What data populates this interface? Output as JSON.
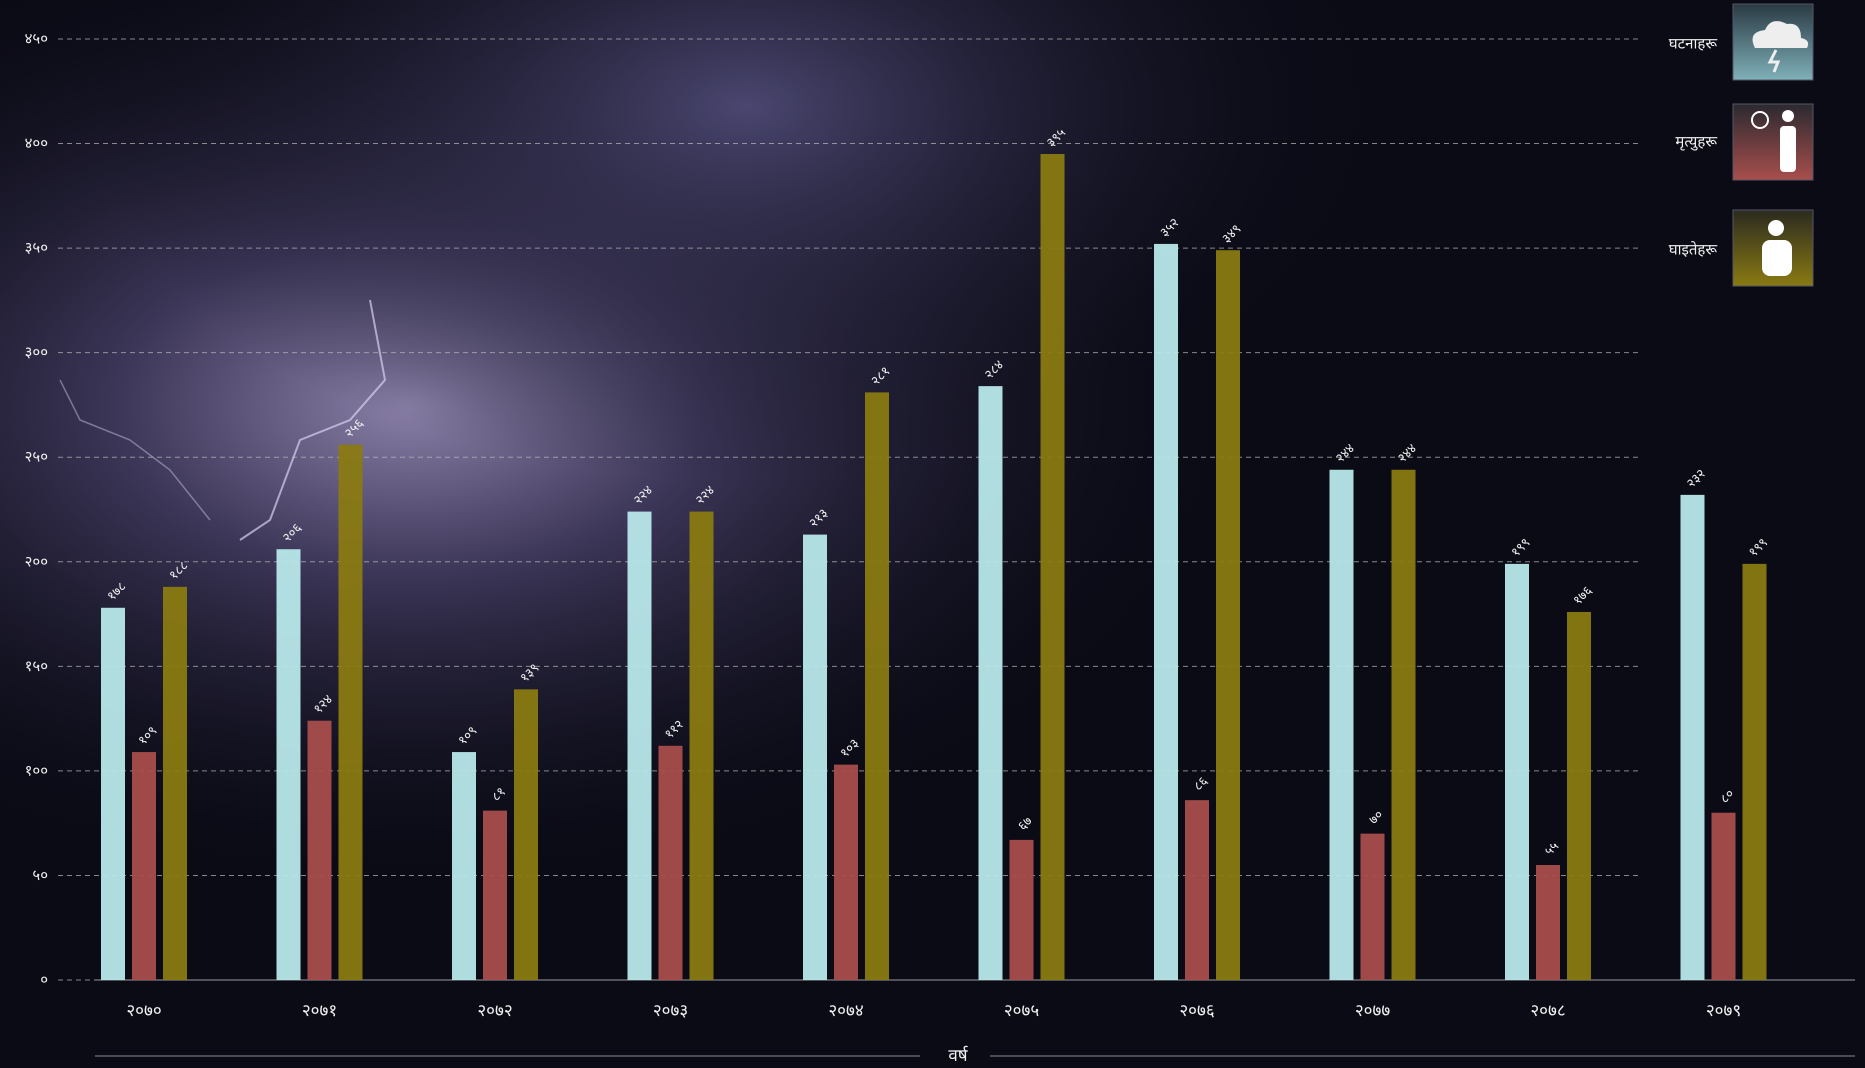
{
  "chart_data": {
    "type": "bar",
    "x_label": "वर्ष",
    "categories": [
      "२०७०",
      "२०७१",
      "२०७२",
      "२०७३",
      "२०७४",
      "२०७५",
      "२०७६",
      "२०७७",
      "२०७८",
      "२०७९"
    ],
    "series": [
      {
        "name": "घटनाहरू",
        "color": "#b8e8ea",
        "values": [
          178,
          206,
          109,
          224,
          213,
          284,
          352,
          244,
          199,
          232
        ],
        "value_labels": [
          "१७८",
          "२०६",
          "१०९",
          "२२४",
          "२१३",
          "२८४",
          "३५२",
          "२४४",
          "१९९",
          "२३२"
        ]
      },
      {
        "name": "मृत्युहरू",
        "color": "#a84e4c",
        "values": [
          109,
          124,
          81,
          112,
          103,
          67,
          86,
          70,
          55,
          80
        ],
        "value_labels": [
          "१०९",
          "१२४",
          "८१",
          "११२",
          "१०३",
          "६७",
          "८६",
          "७०",
          "५५",
          "८०"
        ]
      },
      {
        "name": "घाइतेहरू",
        "color": "#8a7a12",
        "values": [
          188,
          256,
          139,
          224,
          281,
          395,
          349,
          244,
          176,
          199
        ],
        "value_labels": [
          "१८८",
          "२५६",
          "१३९",
          "२२४",
          "२८१",
          "३९५",
          "३४९",
          "२४४",
          "१७६",
          "१९९"
        ]
      }
    ],
    "ylim": [
      0,
      450
    ],
    "yticks": [
      {
        "value": 0,
        "label": "०"
      },
      {
        "value": 50,
        "label": "५०"
      },
      {
        "value": 100,
        "label": "१००"
      },
      {
        "value": 150,
        "label": "१५०"
      },
      {
        "value": 200,
        "label": "२००"
      },
      {
        "value": 250,
        "label": "२५०"
      },
      {
        "value": 300,
        "label": "३००"
      },
      {
        "value": 350,
        "label": "३५०"
      },
      {
        "value": 400,
        "label": "४००"
      },
      {
        "value": 450,
        "label": "४५०"
      }
    ],
    "grid": true,
    "legend": "top-right"
  }
}
